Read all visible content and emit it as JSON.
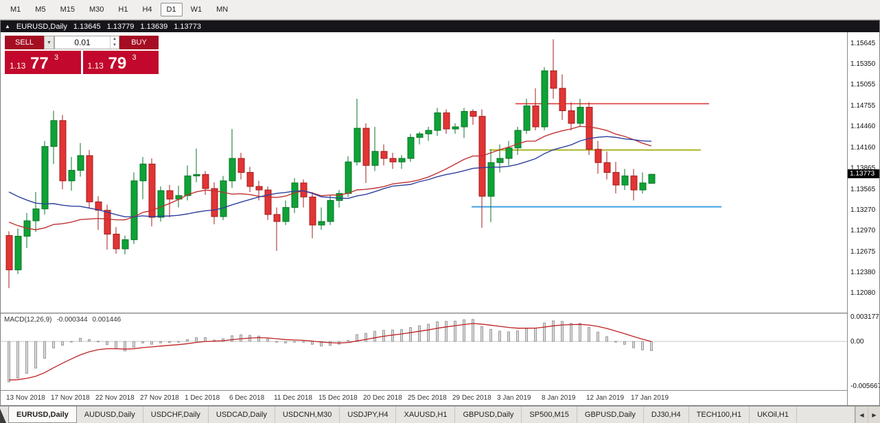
{
  "toolbar": {
    "timeframes": [
      "M1",
      "M5",
      "M15",
      "M30",
      "H1",
      "H4",
      "D1",
      "W1",
      "MN"
    ],
    "active": "D1"
  },
  "chart": {
    "title": "EURUSD,Daily",
    "open": "1.13645",
    "high": "1.13779",
    "low": "1.13639",
    "close": "1.13773"
  },
  "trade_panel": {
    "sell_label": "SELL",
    "buy_label": "BUY",
    "volume": "0.01",
    "sell_price": {
      "base": "1.13",
      "pips": "77",
      "frac": "3"
    },
    "buy_price": {
      "base": "1.13",
      "pips": "79",
      "frac": "3"
    }
  },
  "price_scale": {
    "ticks": [
      "1.15645",
      "1.15350",
      "1.15055",
      "1.14755",
      "1.14460",
      "1.14160",
      "1.13865",
      "1.13565",
      "1.13270",
      "1.12970",
      "1.12675",
      "1.12380",
      "1.12080"
    ],
    "current": "1.13773"
  },
  "macd": {
    "label": "MACD(12,26,9)",
    "main_value": "-0.000344",
    "signal_value": "0.001446",
    "scale_ticks": [
      "0.003177",
      "0.00",
      "-0.005667"
    ]
  },
  "dates": [
    "13 Nov 2018",
    "17 Nov 2018",
    "22 Nov 2018",
    "27 Nov 2018",
    "1 Dec 2018",
    "6 Dec 2018",
    "11 Dec 2018",
    "15 Dec 2018",
    "20 Dec 2018",
    "25 Dec 2018",
    "29 Dec 2018",
    "3 Jan 2019",
    "8 Jan 2019",
    "12 Jan 2019",
    "17 Jan 2019"
  ],
  "tabs": {
    "items": [
      "EURUSD,Daily",
      "AUDUSD,Daily",
      "USDCHF,Daily",
      "USDCAD,Daily",
      "USDCNH,M30",
      "USDJPY,H4",
      "XAUUSD,H1",
      "GBPUSD,Daily",
      "SP500,M15",
      "GBPUSD,Daily",
      "DJ30,H4",
      "TECH100,H1",
      "UKOil,H1"
    ],
    "active_index": 0
  },
  "icons": {
    "chart_window": "▲",
    "dropdown": "▼",
    "spin_up": "▲",
    "spin_down": "▼",
    "scroll_left": "◀",
    "scroll_right": "▶"
  },
  "chart_data": {
    "type": "candlestick",
    "symbol": "EURUSD",
    "timeframe": "Daily",
    "ylim": [
      1.118,
      1.158
    ],
    "date_label_step": 5,
    "colors": {
      "bull": "#0fa236",
      "bull_stroke": "#067426",
      "bear": "#e23434",
      "bear_stroke": "#a31d1d",
      "ma_red": "#c03030",
      "ma_blue": "#2d3f9e",
      "hline_red": "#e03c3c",
      "hline_olive": "#a9b626",
      "hline_blue": "#3f9fe8",
      "macd_hist_fill": "#d8d8d8",
      "macd_hist_stroke": "#9b9b9b",
      "macd_signal": "#c02020",
      "accent_red": "#c2082c"
    },
    "moving_averages": [
      {
        "type": "sma",
        "period": 20,
        "color_key": "ma_red"
      },
      {
        "type": "sma",
        "period": 30,
        "color_key": "ma_blue"
      }
    ],
    "hlines": [
      {
        "name": "resistance-line",
        "price": 1.1478,
        "x1": 750,
        "x2": 1032,
        "color_key": "hline_red",
        "width": 1.6
      },
      {
        "name": "pivot-line",
        "price": 1.1412,
        "x1": 712,
        "x2": 1020,
        "color_key": "hline_olive",
        "width": 2
      },
      {
        "name": "support-line",
        "price": 1.1331,
        "x1": 686,
        "x2": 1050,
        "color_key": "hline_blue",
        "width": 2
      }
    ],
    "macd_params": {
      "fast": 12,
      "slow": 26,
      "signal": 9,
      "ylim": [
        -0.0062,
        0.0035
      ]
    },
    "candles": [
      [
        1.129,
        1.1296,
        1.1215,
        1.1241
      ],
      [
        1.1241,
        1.13,
        1.1235,
        1.1289
      ],
      [
        1.1289,
        1.1322,
        1.1272,
        1.1311
      ],
      [
        1.1311,
        1.1352,
        1.1295,
        1.1328
      ],
      [
        1.1328,
        1.1425,
        1.132,
        1.1417
      ],
      [
        1.1417,
        1.1468,
        1.1392,
        1.1454
      ],
      [
        1.1454,
        1.1462,
        1.1356,
        1.1368
      ],
      [
        1.1368,
        1.1402,
        1.1354,
        1.1383
      ],
      [
        1.1383,
        1.1422,
        1.1374,
        1.1404
      ],
      [
        1.1404,
        1.1412,
        1.1329,
        1.1338
      ],
      [
        1.1338,
        1.1346,
        1.1298,
        1.1326
      ],
      [
        1.1326,
        1.1334,
        1.127,
        1.1292
      ],
      [
        1.1292,
        1.1302,
        1.1264,
        1.1271
      ],
      [
        1.1271,
        1.129,
        1.1263,
        1.1284
      ],
      [
        1.1284,
        1.138,
        1.1278,
        1.1368
      ],
      [
        1.1368,
        1.1402,
        1.1342,
        1.1392
      ],
      [
        1.1392,
        1.14,
        1.1303,
        1.1316
      ],
      [
        1.1316,
        1.136,
        1.131,
        1.1354
      ],
      [
        1.1354,
        1.1362,
        1.1316,
        1.1342
      ],
      [
        1.1342,
        1.1361,
        1.133,
        1.1347
      ],
      [
        1.1347,
        1.139,
        1.134,
        1.1375
      ],
      [
        1.1375,
        1.1414,
        1.1366,
        1.1377
      ],
      [
        1.1377,
        1.1382,
        1.1348,
        1.1357
      ],
      [
        1.1357,
        1.1366,
        1.1306,
        1.1317
      ],
      [
        1.1317,
        1.1375,
        1.1312,
        1.1368
      ],
      [
        1.1368,
        1.1442,
        1.1358,
        1.14
      ],
      [
        1.14,
        1.1408,
        1.137,
        1.138
      ],
      [
        1.138,
        1.1388,
        1.1352,
        1.136
      ],
      [
        1.136,
        1.1368,
        1.134,
        1.1355
      ],
      [
        1.1355,
        1.136,
        1.1312,
        1.132
      ],
      [
        1.132,
        1.133,
        1.1268,
        1.131
      ],
      [
        1.131,
        1.134,
        1.1305,
        1.133
      ],
      [
        1.133,
        1.1372,
        1.1322,
        1.1365
      ],
      [
        1.1365,
        1.137,
        1.133,
        1.1345
      ],
      [
        1.1345,
        1.1352,
        1.1286,
        1.1305
      ],
      [
        1.1305,
        1.133,
        1.1298,
        1.131
      ],
      [
        1.131,
        1.1348,
        1.1305,
        1.134
      ],
      [
        1.134,
        1.1355,
        1.133,
        1.135
      ],
      [
        1.135,
        1.1403,
        1.1345,
        1.1395
      ],
      [
        1.1395,
        1.1485,
        1.139,
        1.1443
      ],
      [
        1.1443,
        1.145,
        1.1365,
        1.139
      ],
      [
        1.139,
        1.1445,
        1.1382,
        1.141
      ],
      [
        1.141,
        1.142,
        1.139,
        1.14
      ],
      [
        1.14,
        1.1408,
        1.1385,
        1.1395
      ],
      [
        1.1395,
        1.1405,
        1.1385,
        1.14
      ],
      [
        1.14,
        1.1435,
        1.1395,
        1.143
      ],
      [
        1.143,
        1.1438,
        1.142,
        1.1435
      ],
      [
        1.1435,
        1.1445,
        1.1425,
        1.144
      ],
      [
        1.144,
        1.1472,
        1.1432,
        1.1465
      ],
      [
        1.1465,
        1.147,
        1.1435,
        1.1442
      ],
      [
        1.1442,
        1.145,
        1.1435,
        1.1445
      ],
      [
        1.1445,
        1.1472,
        1.1429,
        1.1467
      ],
      [
        1.1467,
        1.147,
        1.1448,
        1.146
      ],
      [
        1.146,
        1.147,
        1.1301,
        1.1346
      ],
      [
        1.1346,
        1.1413,
        1.1309,
        1.1394
      ],
      [
        1.1394,
        1.142,
        1.138,
        1.14
      ],
      [
        1.14,
        1.1425,
        1.139,
        1.1415
      ],
      [
        1.1415,
        1.1445,
        1.1405,
        1.144
      ],
      [
        1.144,
        1.1485,
        1.1435,
        1.1475
      ],
      [
        1.1475,
        1.15,
        1.144,
        1.1445
      ],
      [
        1.1445,
        1.153,
        1.144,
        1.1525
      ],
      [
        1.1525,
        1.157,
        1.1485,
        1.15
      ],
      [
        1.15,
        1.152,
        1.1455,
        1.1468
      ],
      [
        1.1468,
        1.148,
        1.144,
        1.145
      ],
      [
        1.145,
        1.1485,
        1.1445,
        1.1473
      ],
      [
        1.1473,
        1.148,
        1.1405,
        1.1413
      ],
      [
        1.1413,
        1.1425,
        1.1378,
        1.1394
      ],
      [
        1.1394,
        1.141,
        1.137,
        1.138
      ],
      [
        1.138,
        1.1395,
        1.135,
        1.1362
      ],
      [
        1.1362,
        1.1385,
        1.1355,
        1.1375
      ],
      [
        1.1375,
        1.1385,
        1.134,
        1.1355
      ],
      [
        1.1355,
        1.138,
        1.135,
        1.1365
      ],
      [
        1.13645,
        1.13779,
        1.13639,
        1.13773
      ]
    ]
  }
}
